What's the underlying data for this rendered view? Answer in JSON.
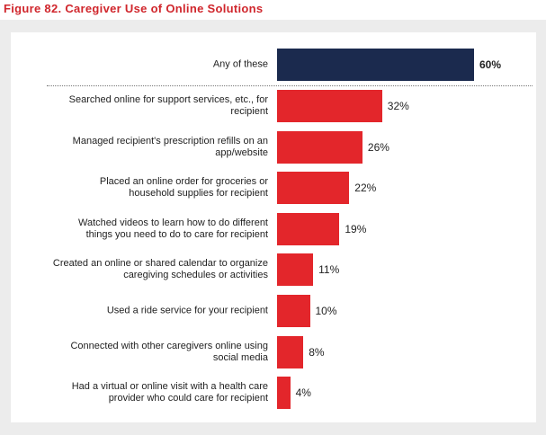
{
  "chart_data": {
    "type": "bar",
    "orientation": "horizontal",
    "title": "Figure 82. Caregiver Use of Online Solutions",
    "categories": [
      "Any of these",
      "Searched online for support services, etc., for recipient",
      "Managed recipient's prescription refills on an app/website",
      "Placed an online order for groceries or household supplies for recipient",
      "Watched videos to learn how to do different things you need to do to care for recipient",
      "Created an online or shared calendar to organize caregiving schedules or activities",
      "Used a ride service for your recipient",
      "Connected with other caregivers online using social media",
      "Had a virtual or online visit with a health care provider who could care for recipient"
    ],
    "values": [
      60,
      32,
      26,
      22,
      19,
      11,
      10,
      8,
      4
    ],
    "value_labels": [
      "60%",
      "32%",
      "26%",
      "22%",
      "19%",
      "11%",
      "10%",
      "8%",
      "4%"
    ],
    "colors": [
      "#1b2a4e",
      "#e3262b",
      "#e3262b",
      "#e3262b",
      "#e3262b",
      "#e3262b",
      "#e3262b",
      "#e3262b",
      "#e3262b"
    ]
  }
}
